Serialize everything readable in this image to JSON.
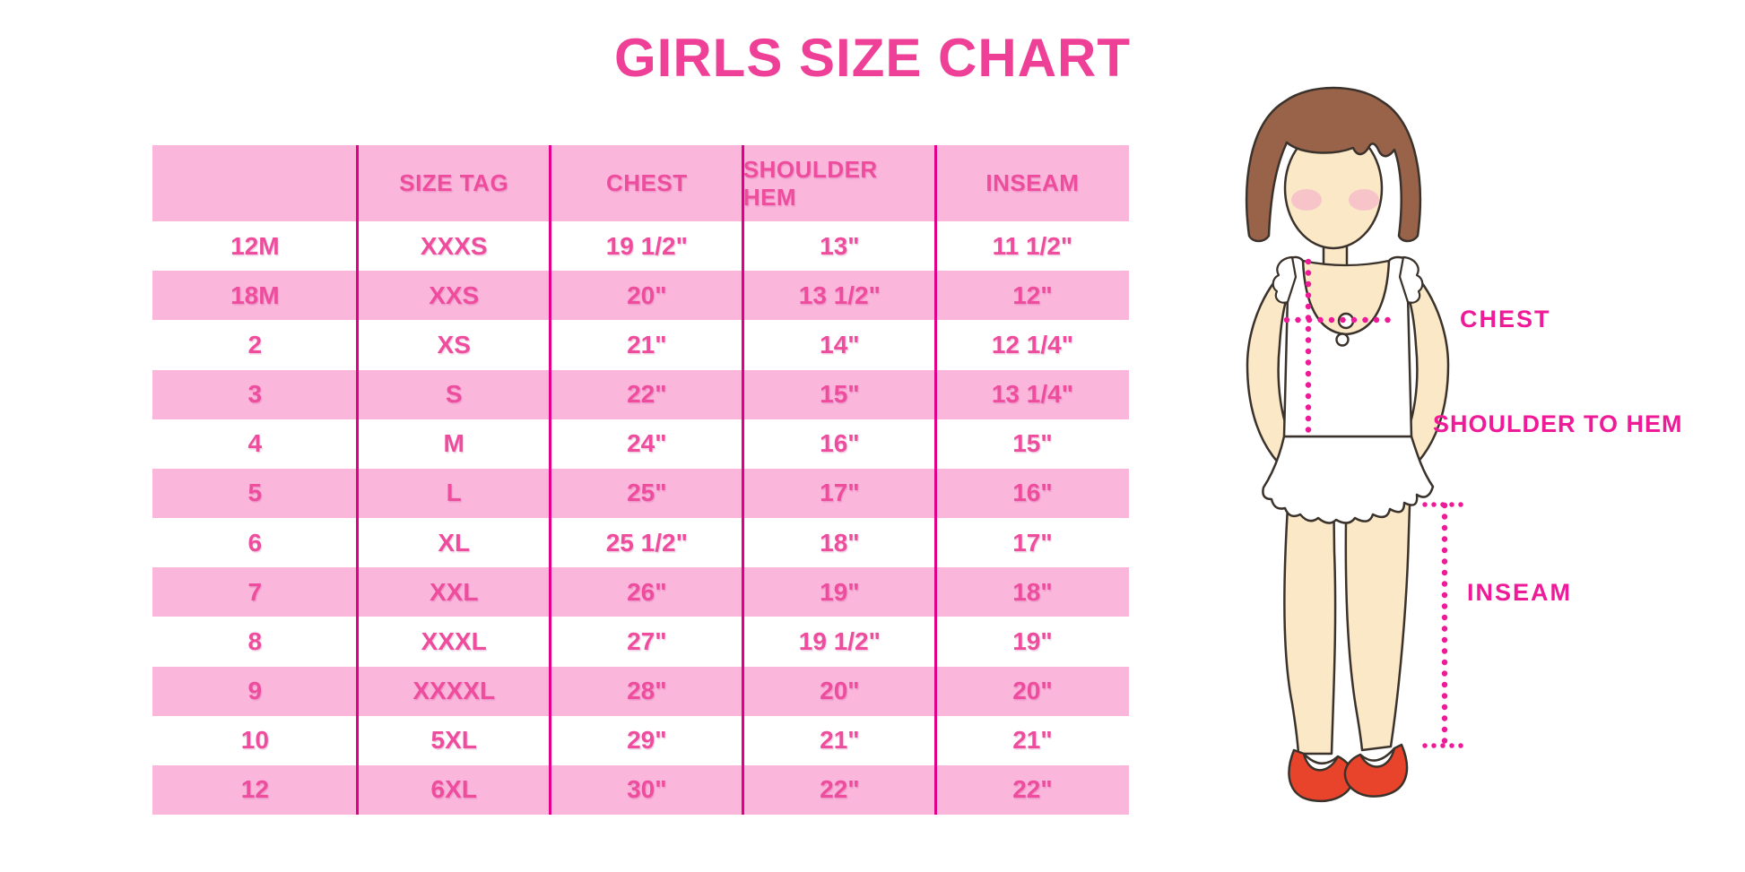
{
  "title": "GIRLS SIZE CHART",
  "colors": {
    "title_pink": "#EF4098",
    "table_text_pink": "#EE4D9E",
    "row_pink": "#FBB6DC",
    "divider_magenta": "#E2008A",
    "label_magenta": "#EE1A97",
    "shoe_red": "#E8442C",
    "hair_brown": "#99634A",
    "skin": "#FAE8C6",
    "outline": "#3A322B",
    "blush": "#F6BCC9"
  },
  "chart_data": {
    "type": "table",
    "title": "GIRLS SIZE CHART",
    "columns": [
      "",
      "SIZE TAG",
      "CHEST",
      "SHOULDER HEM",
      "INSEAM"
    ],
    "rows": [
      [
        "12M",
        "XXXS",
        "19 1/2\"",
        "13\"",
        "11 1/2\""
      ],
      [
        "18M",
        "XXS",
        "20\"",
        "13 1/2\"",
        "12\""
      ],
      [
        "2",
        "XS",
        "21\"",
        "14\"",
        "12 1/4\""
      ],
      [
        "3",
        "S",
        "22\"",
        "15\"",
        "13 1/4\""
      ],
      [
        "4",
        "M",
        "24\"",
        "16\"",
        "15\""
      ],
      [
        "5",
        "L",
        "25\"",
        "17\"",
        "16\""
      ],
      [
        "6",
        "XL",
        "25 1/2\"",
        "18\"",
        "17\""
      ],
      [
        "7",
        "XXL",
        "26\"",
        "19\"",
        "18\""
      ],
      [
        "8",
        "XXXL",
        "27\"",
        "19 1/2\"",
        "19\""
      ],
      [
        "9",
        "XXXXL",
        "28\"",
        "20\"",
        "20\""
      ],
      [
        "10",
        "5XL",
        "29\"",
        "21\"",
        "21\""
      ],
      [
        "12",
        "6XL",
        "30\"",
        "22\"",
        "22\""
      ]
    ],
    "row_striping": "white/pink alternating, header pink",
    "legend_position": "none",
    "grid": "vertical magenta column dividers only"
  },
  "diagram": {
    "labels": {
      "chest": "CHEST",
      "shoulder_to_hem": "SHOULDER TO HEM",
      "inseam": "INSEAM"
    }
  }
}
